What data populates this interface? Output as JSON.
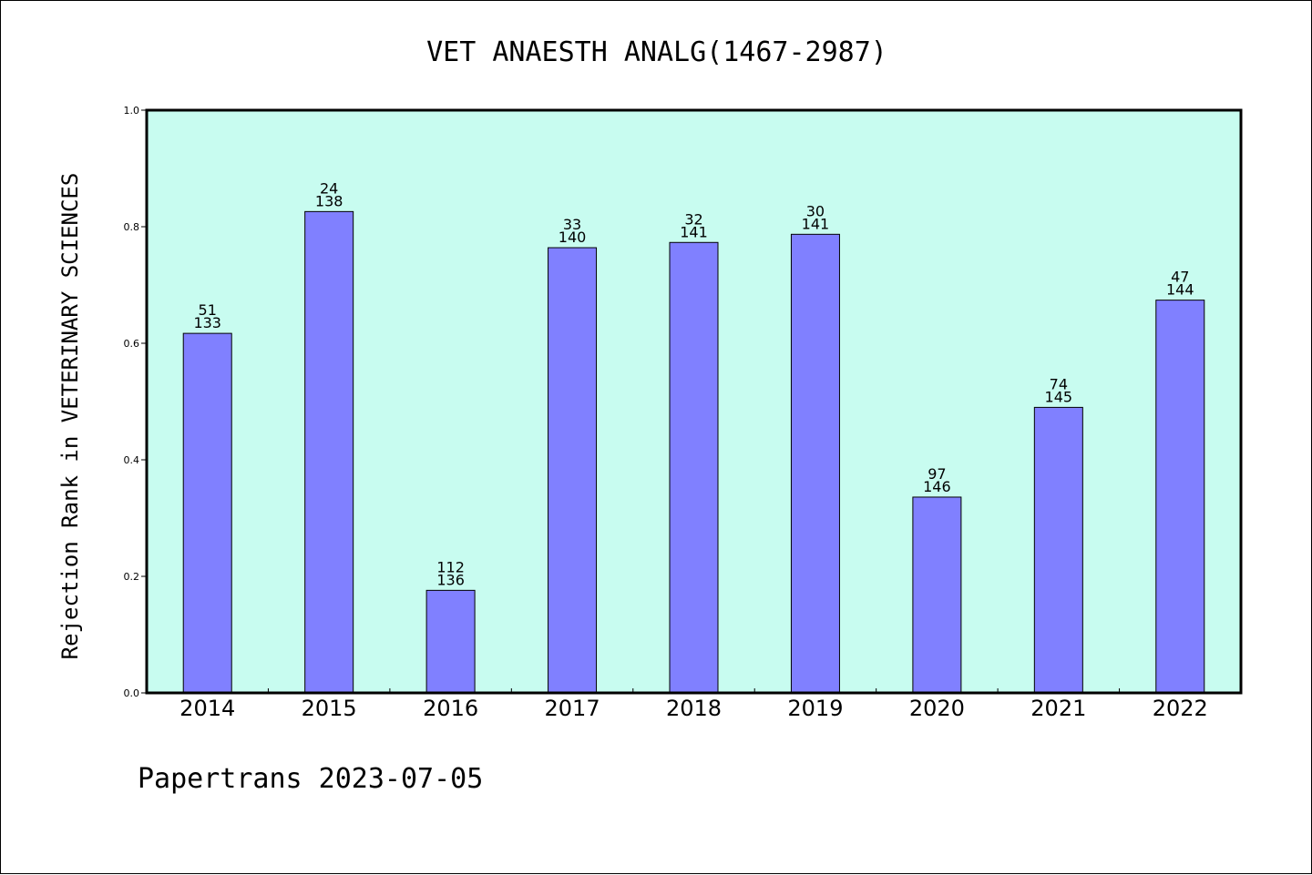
{
  "title": "VET ANAESTH ANALG(1467-2987)",
  "footer": "Papertrans 2023-07-05",
  "chart_data": {
    "type": "bar",
    "title": "VET ANAESTH ANALG(1467-2987)",
    "ylabel": "Rejection Rank in VETERINARY SCIENCES",
    "xlabel": "",
    "categories": [
      "2014",
      "2015",
      "2016",
      "2017",
      "2018",
      "2019",
      "2020",
      "2021",
      "2022"
    ],
    "values": [
      0.617,
      0.826,
      0.176,
      0.764,
      0.773,
      0.787,
      0.336,
      0.49,
      0.674
    ],
    "label_top": [
      "51",
      "24",
      "112",
      "33",
      "32",
      "30",
      "97",
      "74",
      "47"
    ],
    "label_bottom": [
      "133",
      "138",
      "136",
      "140",
      "141",
      "141",
      "146",
      "145",
      "144"
    ],
    "ylim": [
      0,
      1.0
    ],
    "yticks": [
      "0.0",
      "0.2",
      "0.4",
      "0.6",
      "0.8",
      "1.0"
    ],
    "grid": false,
    "colors": {
      "bar": "#8080ff",
      "plot_background": "#c8fcf0",
      "axis": "#000000"
    }
  }
}
